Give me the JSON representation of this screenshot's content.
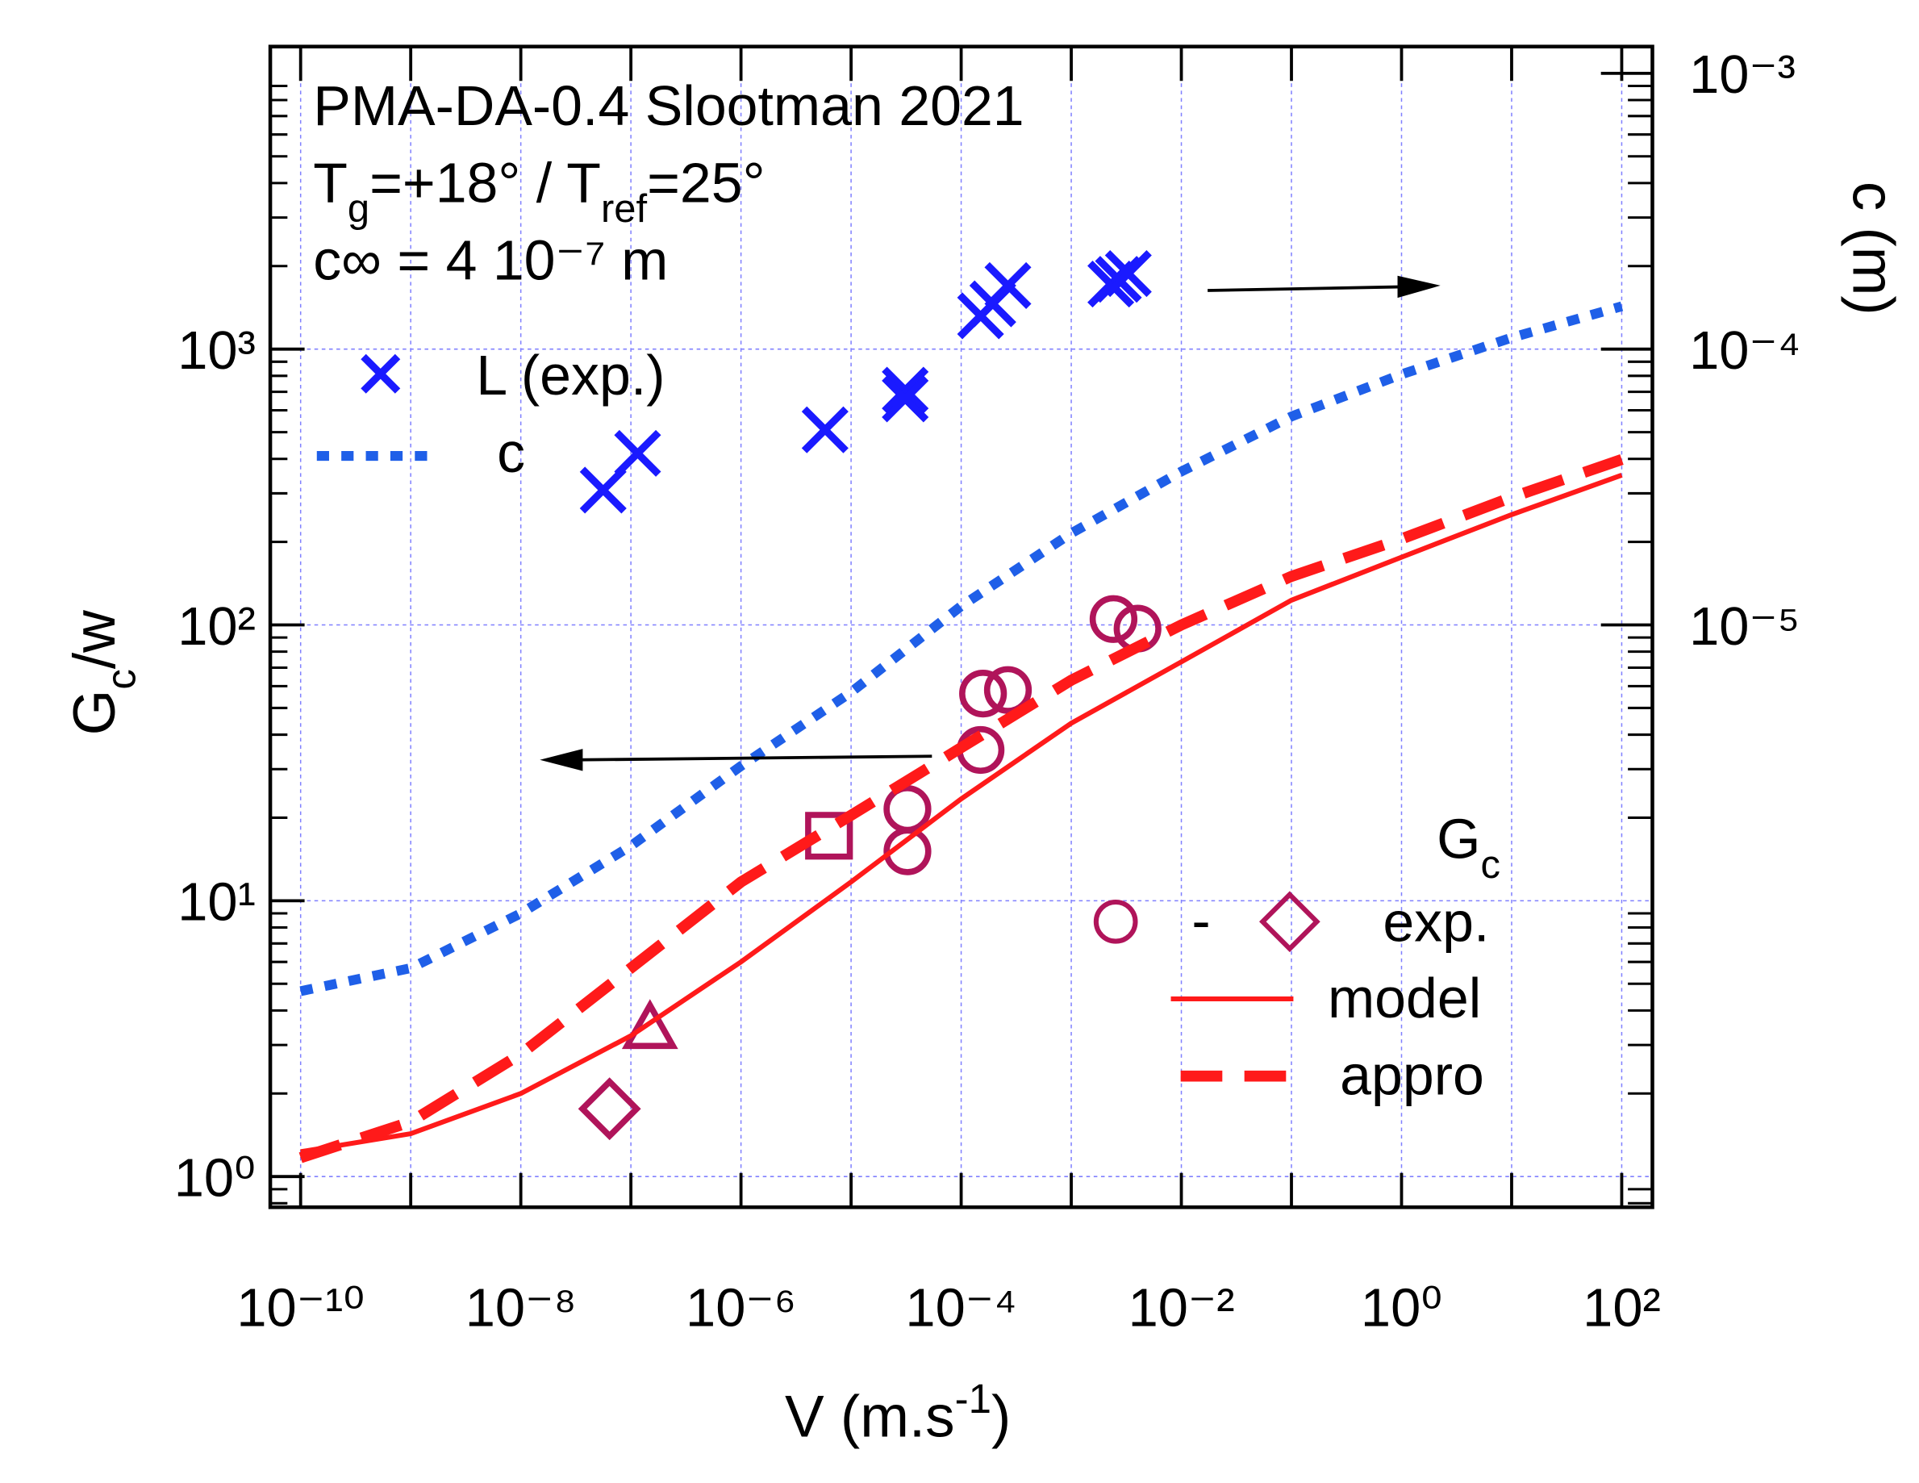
{
  "chart_data": {
    "type": "scatter",
    "title": "PMA-DA-0.4 Slootman 2021",
    "subtitle": [
      "T",
      "g",
      "=+18° / T",
      "ref",
      "=25°"
    ],
    "annotations": [
      "c∞ = 4 10⁻⁷ m"
    ],
    "x_label": [
      "V (m.s",
      "-1",
      ")"
    ],
    "y_label": [
      "G",
      "c",
      "/w"
    ],
    "y2_label": "c (m)",
    "log_x": true,
    "log_y": true,
    "log_y2": true,
    "grid": true,
    "xlim": [
      5.3e-11,
      190
    ],
    "ylim": [
      0.774,
      12500
    ],
    "y2lim": [
      7.74e-08,
      0.00125
    ],
    "xticks": [
      {
        "value": 1e-10,
        "label": "10⁻¹⁰"
      },
      {
        "value": 1e-09,
        "label": null
      },
      {
        "value": 1e-08,
        "label": "10⁻⁸"
      },
      {
        "value": 1e-07,
        "label": null
      },
      {
        "value": 1e-06,
        "label": "10⁻⁶"
      },
      {
        "value": 1e-05,
        "label": null
      },
      {
        "value": 0.0001,
        "label": "10⁻⁴"
      },
      {
        "value": 0.001,
        "label": null
      },
      {
        "value": 0.01,
        "label": "10⁻²"
      },
      {
        "value": 0.1,
        "label": null
      },
      {
        "value": 1,
        "label": "10⁰"
      },
      {
        "value": 10,
        "label": null
      },
      {
        "value": 100,
        "label": "10²"
      }
    ],
    "yticks": [
      {
        "value": 1,
        "label": "10⁰"
      },
      {
        "value": 10,
        "label": "10¹"
      },
      {
        "value": 100,
        "label": "10²"
      },
      {
        "value": 1000,
        "label": "10³"
      }
    ],
    "y2ticks": [
      {
        "value": 1e-05,
        "label": "10⁻⁵"
      },
      {
        "value": 0.0001,
        "label": "10⁻⁴"
      },
      {
        "value": 0.001,
        "label": "10⁻³"
      }
    ],
    "legend": {
      "title": [
        "G",
        "c"
      ],
      "exp_range_symbol": "-"
    },
    "series": [
      {
        "name": "L (exp.)",
        "color": "#1a1aff",
        "axis": "y2",
        "kind": "cross",
        "x": [
          5.6e-08,
          1.15e-07,
          5.8e-06,
          3.1e-05,
          3.1e-05,
          0.00015,
          0.000194,
          0.000266,
          0.00229,
          0.00268,
          0.0033
        ],
        "values": [
          3.08e-05,
          4.19e-05,
          5.1e-05,
          7.1e-05,
          6.6e-05,
          0.000132,
          0.000146,
          0.00017,
          0.000172,
          0.000179,
          0.000188
        ]
      },
      {
        "name": "c",
        "color": "#1f5fe8",
        "axis": "y2",
        "kind": "dotted",
        "x": [
          1e-10,
          1e-09,
          1e-08,
          1e-07,
          1e-06,
          1e-05,
          0.0001,
          0.001,
          0.01,
          0.1,
          1,
          10,
          100
        ],
        "values": [
          4.7e-07,
          5.7e-07,
          9e-07,
          1.58e-06,
          3.08e-06,
          5.7e-06,
          1.17e-05,
          2.15e-05,
          3.6e-05,
          5.7e-05,
          8.1e-05,
          0.00011,
          0.000143
        ]
      },
      {
        "name": "exp.",
        "color": "#b0145a",
        "kind": "markers",
        "markers": [
          "circle",
          "circle",
          "circle",
          "circle",
          "circle",
          "circle",
          "circle",
          "square",
          "triangle",
          "diamond"
        ],
        "x": [
          3.25e-05,
          3.25e-05,
          0.00015,
          0.000158,
          0.000266,
          0.00242,
          0.004,
          6.3e-06,
          1.49e-07,
          6.4e-08
        ],
        "values": [
          15.1,
          21.5,
          35.2,
          56.4,
          58.1,
          105,
          97,
          17.2,
          3.42,
          1.76
        ]
      },
      {
        "name": "model",
        "color": "#ff1a1a",
        "kind": "solid",
        "x": [
          1e-10,
          1e-09,
          1e-08,
          1e-07,
          1e-06,
          1e-05,
          0.0001,
          0.001,
          0.01,
          0.1,
          1,
          10,
          100
        ],
        "values": [
          1.23,
          1.43,
          2.0,
          3.24,
          6.0,
          11.7,
          23.4,
          44,
          73.5,
          123,
          176,
          251,
          349
        ]
      },
      {
        "name": "appro",
        "color": "#ff1a1a",
        "kind": "dashed",
        "x": [
          1e-10,
          1e-09,
          1e-08,
          1e-07,
          1e-06,
          1e-05,
          0.0001,
          0.001,
          0.01,
          0.1,
          1,
          10,
          100
        ],
        "values": [
          1.17,
          1.58,
          2.78,
          5.7,
          11.7,
          20.4,
          35.9,
          63,
          100,
          150,
          205,
          290,
          398
        ]
      }
    ]
  }
}
